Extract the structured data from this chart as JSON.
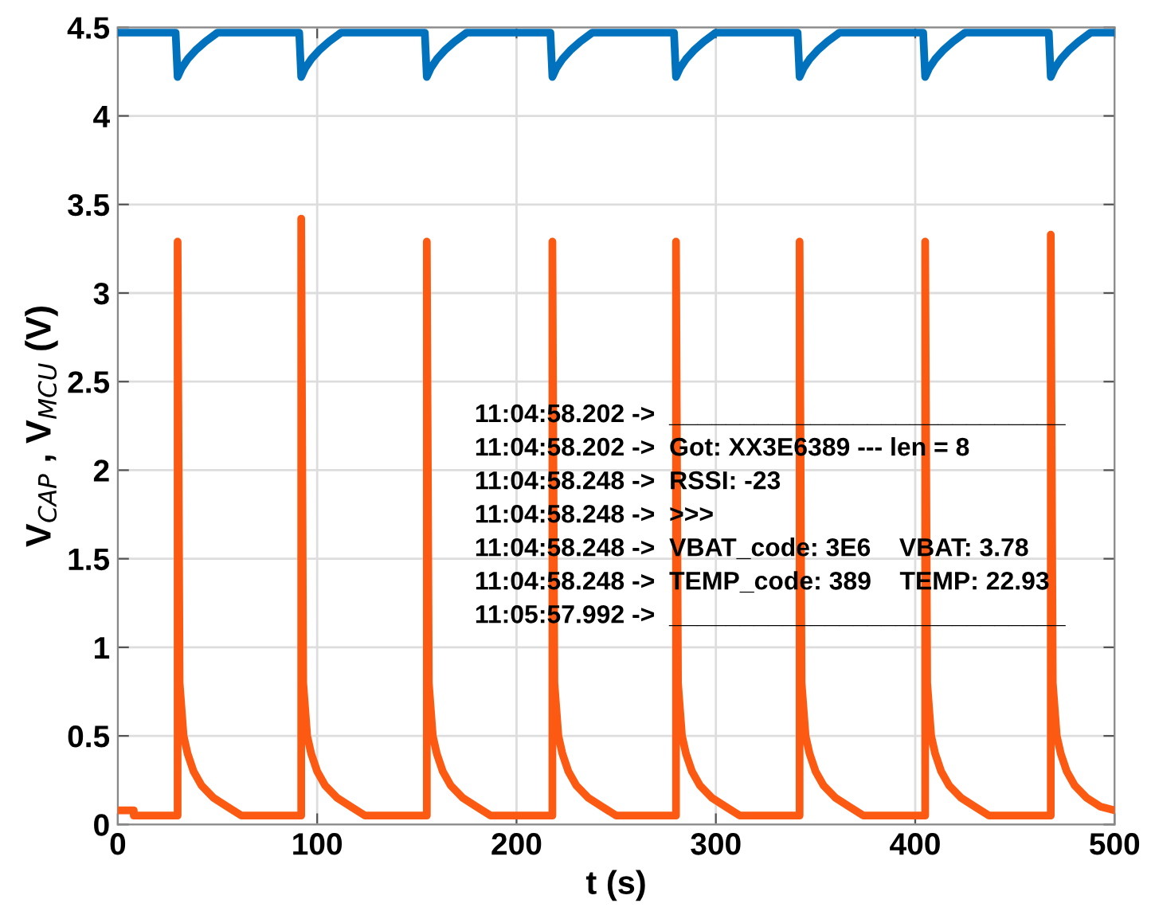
{
  "chart_data": {
    "type": "line",
    "xlabel": "t (s)",
    "ylabel": "V$_{CAP}$ , V$_{MCU}$ (V)",
    "xlim": [
      0,
      500
    ],
    "xticks": [
      0,
      100,
      200,
      300,
      400,
      500
    ],
    "ylim": [
      0,
      4.5
    ],
    "yticks": [
      0,
      0.5,
      1,
      1.5,
      2,
      2.5,
      3,
      3.5,
      4,
      4.5
    ],
    "grid": true,
    "series": [
      {
        "color": "#0072bd",
        "x": [
          0,
          29,
          30,
          32,
          35,
          39,
          44,
          50,
          91,
          92,
          94,
          97,
          101,
          106,
          112,
          154,
          155,
          157,
          160,
          164,
          169,
          175,
          217,
          218,
          220,
          223,
          227,
          232,
          238,
          279,
          280,
          282,
          285,
          289,
          294,
          300,
          341,
          342,
          344,
          347,
          351,
          356,
          362,
          404,
          405,
          407,
          410,
          414,
          419,
          425,
          467,
          468,
          470,
          473,
          477,
          482,
          488,
          500
        ],
        "values": [
          4.47,
          4.47,
          4.22,
          4.27,
          4.32,
          4.37,
          4.42,
          4.47,
          4.47,
          4.22,
          4.27,
          4.32,
          4.37,
          4.42,
          4.47,
          4.47,
          4.22,
          4.27,
          4.32,
          4.37,
          4.42,
          4.47,
          4.47,
          4.22,
          4.27,
          4.32,
          4.37,
          4.42,
          4.47,
          4.47,
          4.22,
          4.27,
          4.32,
          4.37,
          4.42,
          4.47,
          4.47,
          4.22,
          4.27,
          4.32,
          4.37,
          4.42,
          4.47,
          4.47,
          4.22,
          4.27,
          4.32,
          4.37,
          4.42,
          4.47,
          4.47,
          4.22,
          4.27,
          4.32,
          4.37,
          4.42,
          4.47,
          4.47
        ]
      },
      {
        "color": "#fc5a12",
        "x": [
          0,
          8,
          8,
          30,
          30,
          31,
          33,
          35,
          38,
          42,
          48,
          55,
          62,
          92,
          92,
          93,
          95,
          97,
          100,
          104,
          110,
          117,
          124,
          155,
          155,
          156,
          158,
          160,
          163,
          167,
          173,
          180,
          187,
          218,
          218,
          219,
          221,
          223,
          226,
          230,
          236,
          243,
          250,
          280,
          280,
          281,
          283,
          285,
          288,
          292,
          298,
          305,
          312,
          342,
          342,
          343,
          345,
          347,
          350,
          354,
          360,
          367,
          374,
          405,
          405,
          406,
          408,
          410,
          413,
          417,
          423,
          430,
          437,
          468,
          468,
          469,
          471,
          473,
          476,
          480,
          486,
          493,
          500
        ],
        "values": [
          0.08,
          0.08,
          0.05,
          0.05,
          3.29,
          0.8,
          0.5,
          0.4,
          0.3,
          0.22,
          0.15,
          0.1,
          0.05,
          0.05,
          3.42,
          0.8,
          0.5,
          0.4,
          0.3,
          0.22,
          0.15,
          0.1,
          0.05,
          0.05,
          3.29,
          0.8,
          0.5,
          0.4,
          0.3,
          0.22,
          0.15,
          0.1,
          0.05,
          0.05,
          3.29,
          0.8,
          0.5,
          0.4,
          0.3,
          0.22,
          0.15,
          0.1,
          0.05,
          0.05,
          3.29,
          0.8,
          0.5,
          0.4,
          0.3,
          0.22,
          0.15,
          0.1,
          0.05,
          0.05,
          3.29,
          0.8,
          0.5,
          0.4,
          0.3,
          0.22,
          0.15,
          0.1,
          0.05,
          0.05,
          3.29,
          0.8,
          0.5,
          0.4,
          0.3,
          0.22,
          0.15,
          0.1,
          0.05,
          0.05,
          3.33,
          0.8,
          0.5,
          0.4,
          0.3,
          0.22,
          0.15,
          0.1,
          0.08
        ]
      }
    ],
    "annotations": [
      "11:04:58.202 ->  ____________________________",
      "11:04:58.202 ->  Got: XX3E6389 --- len = 8",
      "11:04:58.248 ->  RSSI: -23",
      "11:04:58.248 ->  >>>",
      "11:04:58.248 ->  VBAT_code: 3E6    VBAT: 3.78",
      "11:04:58.248 ->  TEMP_code: 389    TEMP: 22.93",
      "11:05:57.992 ->  ____________________________"
    ]
  }
}
